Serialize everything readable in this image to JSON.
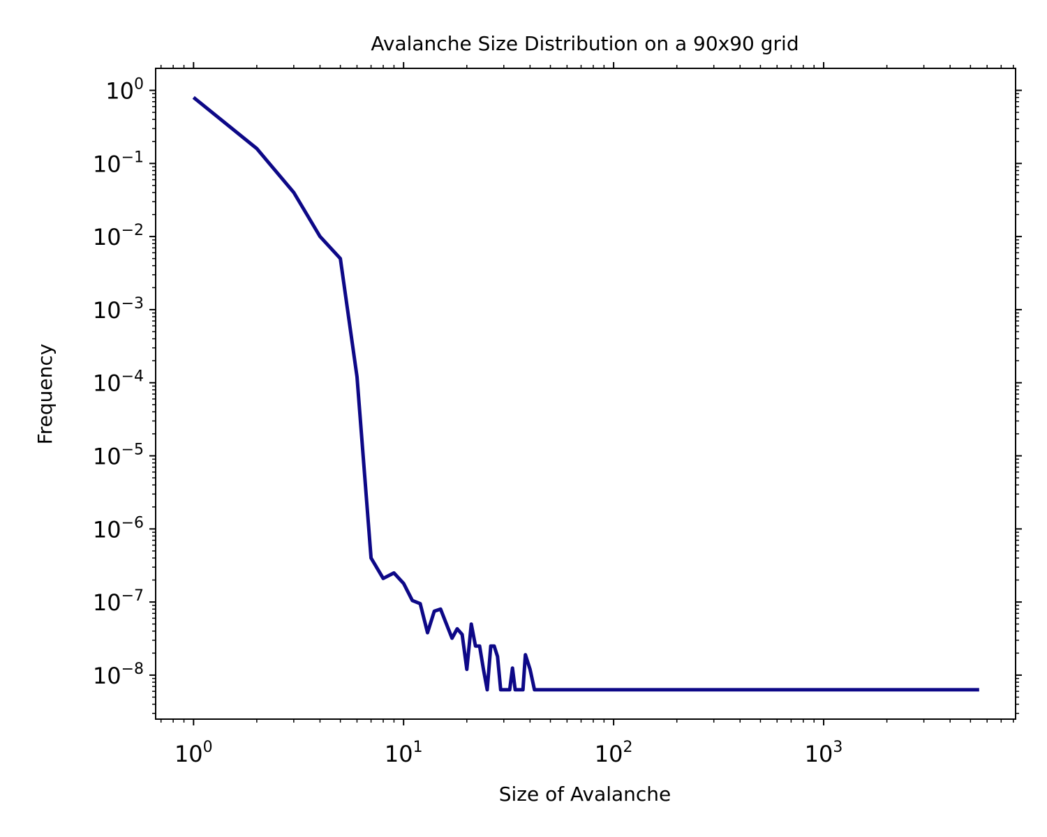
{
  "chart_data": {
    "type": "line",
    "title": "Avalanche Size Distribution on a 90x90 grid",
    "xlabel": "Size of Avalanche",
    "ylabel": "Frequency",
    "xscale": "log",
    "yscale": "log",
    "xlim": [
      0.66,
      8200
    ],
    "ylim": [
      2.5e-09,
      2.0
    ],
    "grid": false,
    "line_color": "#0d0887",
    "x_ticks": [
      {
        "base": "10",
        "exp": "0",
        "value": 1
      },
      {
        "base": "10",
        "exp": "1",
        "value": 10
      },
      {
        "base": "10",
        "exp": "2",
        "value": 100
      },
      {
        "base": "10",
        "exp": "3",
        "value": 1000
      }
    ],
    "y_ticks": [
      {
        "base": "10",
        "exp": "0",
        "value": 1
      },
      {
        "base": "10",
        "exp": "−1",
        "value": 0.1
      },
      {
        "base": "10",
        "exp": "−2",
        "value": 0.01
      },
      {
        "base": "10",
        "exp": "−3",
        "value": 0.001
      },
      {
        "base": "10",
        "exp": "−4",
        "value": 0.0001
      },
      {
        "base": "10",
        "exp": "−5",
        "value": 1e-05
      },
      {
        "base": "10",
        "exp": "−6",
        "value": 1e-06
      },
      {
        "base": "10",
        "exp": "−7",
        "value": 1e-07
      },
      {
        "base": "10",
        "exp": "−8",
        "value": 1e-08
      }
    ],
    "x": [
      1,
      2,
      3,
      4,
      5,
      6,
      7,
      8,
      9,
      10,
      11,
      12,
      13,
      14,
      15,
      16,
      17,
      18,
      19,
      20,
      21,
      22,
      23,
      24,
      25,
      26,
      27,
      28,
      29,
      30,
      31,
      32,
      33,
      34,
      35,
      36,
      37,
      38,
      40,
      42,
      43,
      50,
      100,
      1000,
      5500
    ],
    "y": [
      0.8,
      0.16,
      0.04,
      0.01,
      0.005,
      0.00012,
      4e-07,
      2.1e-07,
      2.5e-07,
      1.8e-07,
      1.05e-07,
      9.5e-08,
      3.8e-08,
      7.5e-08,
      8e-08,
      5e-08,
      3.2e-08,
      4.3e-08,
      3.6e-08,
      1.2e-08,
      5e-08,
      2.5e-08,
      2.5e-08,
      1.2e-08,
      6.3e-09,
      2.5e-08,
      2.5e-08,
      1.8e-08,
      6.3e-09,
      6.3e-09,
      6.3e-09,
      6.3e-09,
      1.25e-08,
      6.3e-09,
      6.3e-09,
      6.3e-09,
      6.3e-09,
      1.9e-08,
      1.2e-08,
      6.3e-09,
      6.3e-09,
      6.3e-09,
      6.3e-09,
      6.3e-09,
      6.3e-09
    ]
  }
}
